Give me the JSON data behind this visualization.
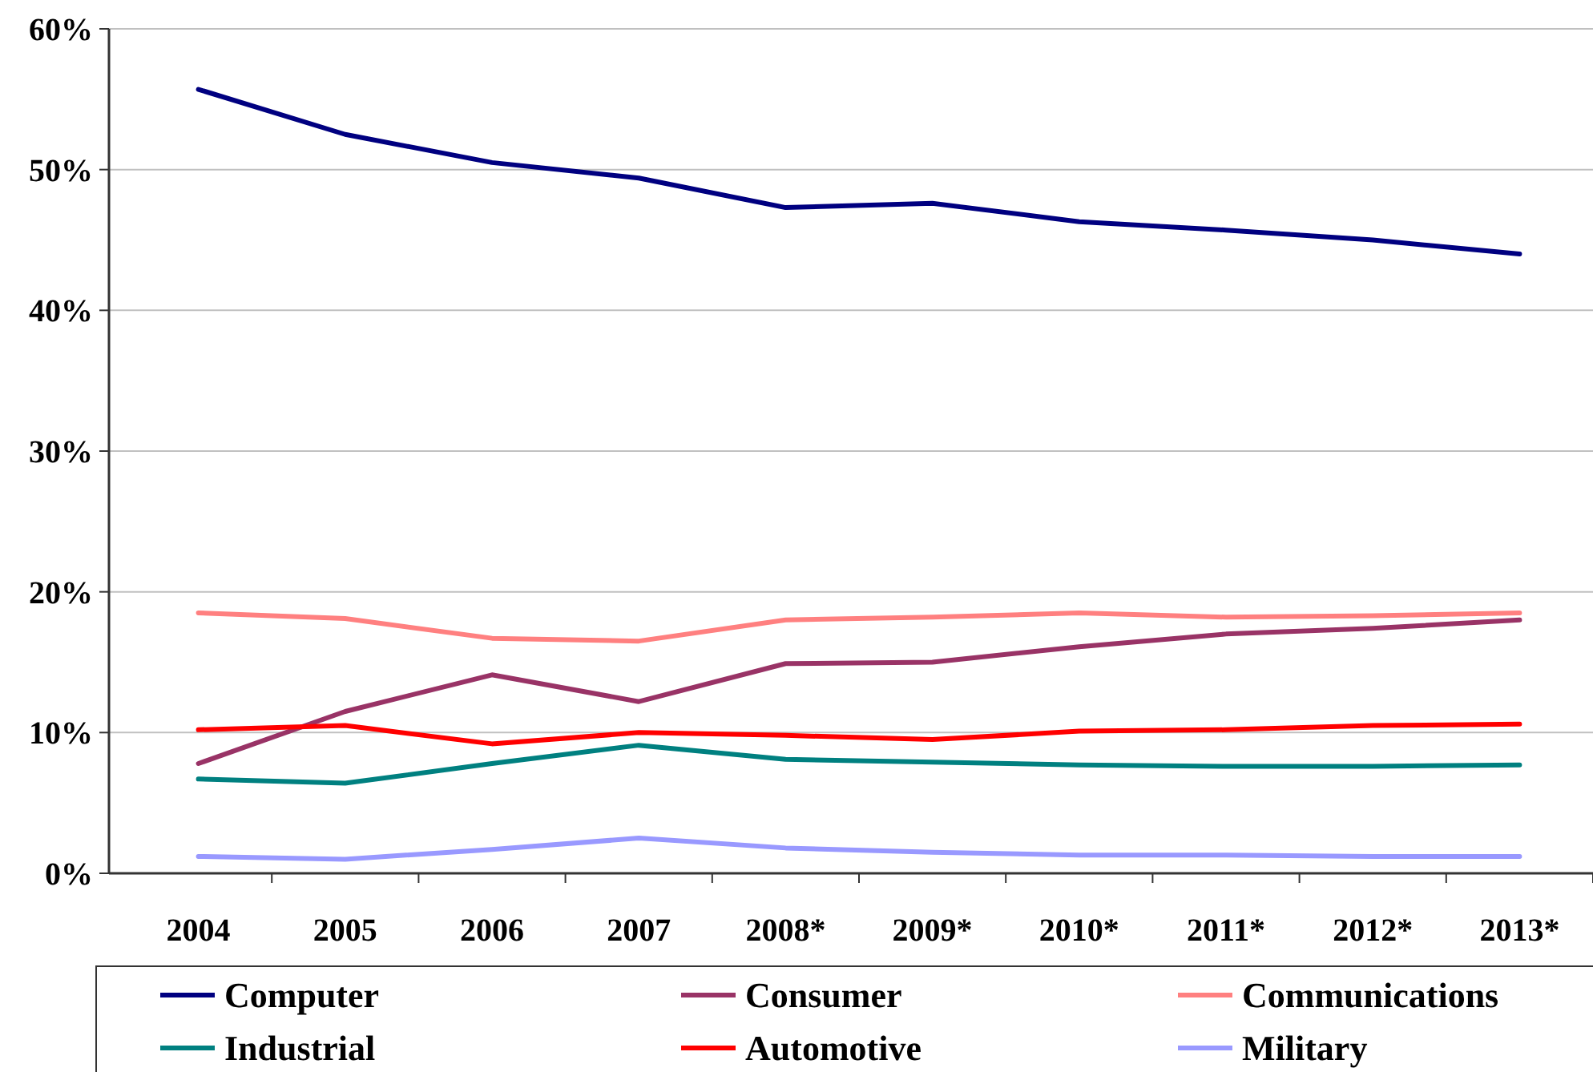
{
  "chart_data": {
    "type": "line",
    "categories": [
      "2004",
      "2005",
      "2006",
      "2007",
      "2008*",
      "2009*",
      "2010*",
      "2011*",
      "2012*",
      "2013*"
    ],
    "series": [
      {
        "name": "Computer",
        "color": "#000080",
        "values": [
          55.7,
          52.5,
          50.5,
          49.4,
          47.3,
          47.6,
          46.3,
          45.7,
          45.0,
          44.0
        ]
      },
      {
        "name": "Consumer",
        "color": "#993366",
        "values": [
          7.8,
          11.5,
          14.1,
          12.2,
          14.9,
          15.0,
          16.1,
          17.0,
          17.4,
          18.0
        ]
      },
      {
        "name": "Communications",
        "color": "#ff8080",
        "values": [
          18.5,
          18.1,
          16.7,
          16.5,
          18.0,
          18.2,
          18.5,
          18.2,
          18.3,
          18.5
        ]
      },
      {
        "name": "Industrial",
        "color": "#008080",
        "values": [
          6.7,
          6.4,
          7.8,
          9.1,
          8.1,
          7.9,
          7.7,
          7.6,
          7.6,
          7.7
        ]
      },
      {
        "name": "Automotive",
        "color": "#ff0000",
        "values": [
          10.2,
          10.5,
          9.2,
          10.0,
          9.8,
          9.5,
          10.1,
          10.2,
          10.5,
          10.6
        ]
      },
      {
        "name": "Military",
        "color": "#9999ff",
        "values": [
          1.2,
          1.0,
          1.7,
          2.5,
          1.8,
          1.5,
          1.3,
          1.3,
          1.2,
          1.2
        ]
      }
    ],
    "ylim": [
      0,
      60
    ],
    "yticks": [
      {
        "value": 0,
        "label": "0%"
      },
      {
        "value": 10,
        "label": "10%"
      },
      {
        "value": 20,
        "label": "20%"
      },
      {
        "value": 30,
        "label": "30%"
      },
      {
        "value": 40,
        "label": "40%"
      },
      {
        "value": 50,
        "label": "50%"
      },
      {
        "value": 60,
        "label": "60%"
      }
    ],
    "grid": "y",
    "legend": "bottom",
    "marker": "none",
    "line_style": "solid"
  }
}
